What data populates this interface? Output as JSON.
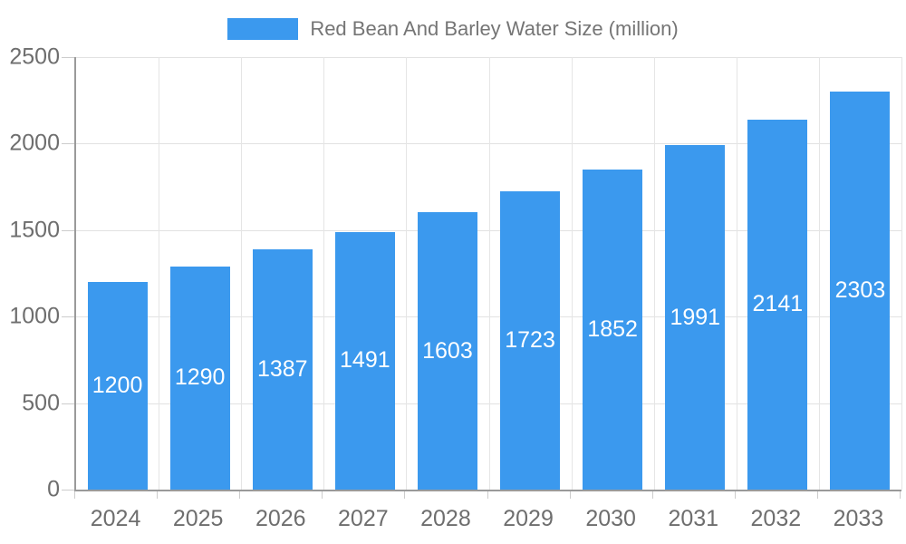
{
  "legend": {
    "label": "Red Bean And Barley Water Size (million)"
  },
  "colors": {
    "bar": "#3b99ee",
    "axis_line": "#9a9a9a",
    "grid_line_h": "#e2e2e2",
    "grid_line_v": "#e5e5e5",
    "tick_line": "#cccccc",
    "axis_text": "#6e6e6e",
    "legend_text": "#757575",
    "value_text": "#ffffff",
    "background": "#ffffff"
  },
  "chart_data": {
    "type": "bar",
    "title": "",
    "xlabel": "",
    "ylabel": "",
    "legend": "Red Bean And Barley Water Size (million)",
    "legend_position": "top-center",
    "categories": [
      "2024",
      "2025",
      "2026",
      "2027",
      "2028",
      "2029",
      "2030",
      "2031",
      "2032",
      "2033"
    ],
    "values": [
      1200,
      1290,
      1387,
      1491,
      1603,
      1723,
      1852,
      1991,
      2141,
      2303
    ],
    "ylim": [
      0,
      2500
    ],
    "yticks": [
      0,
      500,
      1000,
      1500,
      2000,
      2500
    ],
    "grid": true,
    "value_labels": "inside-center-white"
  }
}
